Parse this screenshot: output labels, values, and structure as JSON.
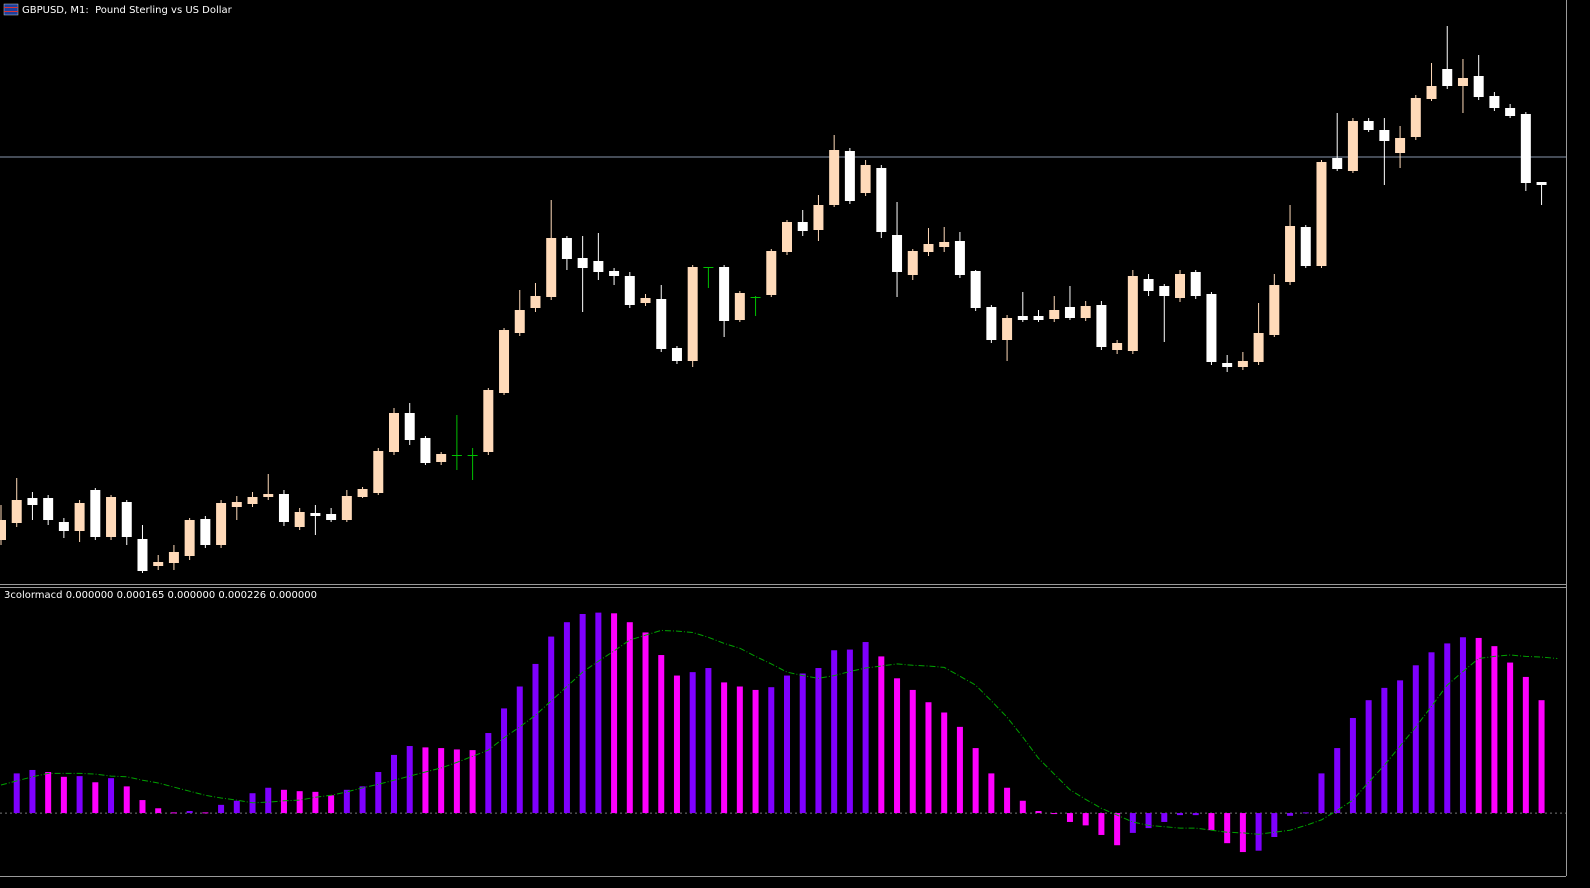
{
  "chart_data": [
    {
      "type": "candlestick",
      "title": "GBPUSD, M1:  Pound Sterling vs US Dollar",
      "open": [
        40,
        57,
        82,
        82,
        58,
        49,
        90,
        43,
        78,
        41,
        14,
        17,
        24,
        61,
        35,
        73,
        76,
        83,
        86,
        53,
        67,
        66,
        60,
        83,
        87,
        128,
        167,
        142,
        118,
        125,
        125,
        128,
        187,
        247,
        272,
        283,
        342,
        322,
        319,
        309,
        304,
        277,
        281,
        232,
        219,
        313,
        313,
        260,
        283,
        285,
        328,
        358,
        350,
        375,
        429,
        387,
        412,
        345,
        305,
        328,
        333,
        339,
        309,
        273,
        240,
        264,
        264,
        261,
        273,
        262,
        275,
        230,
        229,
        301,
        294,
        282,
        308,
        286,
        217,
        213,
        218,
        245,
        298,
        353,
        314,
        422,
        409,
        459,
        450,
        427,
        443,
        481,
        511,
        494,
        504,
        484,
        472,
        466,
        398
      ],
      "high": [
        75,
        102,
        88,
        85,
        62,
        80,
        92,
        85,
        80,
        55,
        25,
        35,
        62,
        64,
        80,
        84,
        88,
        106,
        90,
        72,
        75,
        72,
        90,
        93,
        132,
        172,
        177,
        144,
        128,
        165,
        132,
        192,
        252,
        290,
        297,
        380,
        344,
        344,
        347,
        312,
        308,
        286,
        295,
        234,
        315,
        313,
        315,
        289,
        284,
        331,
        360,
        370,
        385,
        445,
        432,
        420,
        415,
        378,
        331,
        352,
        353,
        348,
        310,
        275,
        265,
        288,
        270,
        284,
        294,
        279,
        279,
        240,
        310,
        306,
        296,
        310,
        310,
        288,
        225,
        228,
        277,
        306,
        375,
        355,
        420,
        467,
        462,
        462,
        462,
        454,
        485,
        517,
        554,
        521,
        525,
        488,
        476,
        468,
        398
      ],
      "low": [
        35,
        53,
        60,
        55,
        42,
        38,
        40,
        40,
        35,
        7,
        10,
        10,
        20,
        32,
        32,
        60,
        73,
        80,
        54,
        50,
        45,
        58,
        58,
        82,
        85,
        125,
        135,
        115,
        115,
        110,
        100,
        125,
        185,
        244,
        268,
        280,
        310,
        268,
        300,
        295,
        272,
        274,
        228,
        216,
        213,
        292,
        243,
        258,
        264,
        283,
        325,
        344,
        339,
        373,
        376,
        384,
        342,
        283,
        300,
        324,
        328,
        302,
        269,
        237,
        219,
        258,
        258,
        258,
        260,
        259,
        230,
        226,
        226,
        284,
        238,
        278,
        281,
        215,
        208,
        210,
        215,
        243,
        295,
        312,
        312,
        409,
        407,
        448,
        395,
        412,
        440,
        479,
        491,
        467,
        480,
        469,
        462,
        389,
        375
      ],
      "close": [
        60,
        80,
        75,
        60,
        49,
        77,
        43,
        83,
        43,
        9,
        18,
        28,
        60,
        35,
        77,
        78,
        83,
        86,
        58,
        68,
        64,
        60,
        84,
        91,
        129,
        167,
        140,
        117,
        126,
        125,
        125,
        190,
        250,
        270,
        284,
        342,
        321,
        312,
        308,
        304,
        275,
        282,
        231,
        219,
        313,
        313,
        259,
        287,
        283,
        329,
        358,
        349,
        375,
        430,
        379,
        415,
        348,
        308,
        329,
        336,
        338,
        305,
        272,
        240,
        262,
        260,
        260,
        270,
        262,
        274,
        233,
        237,
        304,
        289,
        284,
        306,
        284,
        218,
        213,
        219,
        247,
        295,
        354,
        314,
        418,
        411,
        459,
        450,
        439,
        442,
        482,
        494,
        494,
        502,
        483,
        472,
        464,
        397,
        395
      ],
      "up_color": "#ffdab9",
      "down_color": "#ffffff",
      "flat_color": "#00c000",
      "ylim": [
        -4,
        580
      ],
      "hline": 423,
      "hline_color": "#8796ad"
    },
    {
      "type": "histogram",
      "title": "3colormacd 0.000000 0.000165 0.000000 0.000226 0.000000",
      "values": [
        null,
        5.8e-05,
        6.3e-05,
        6e-05,
        5.3e-05,
        5.4e-05,
        4.5e-05,
        5.1e-05,
        3.9e-05,
        1.9e-05,
        7e-06,
        1e-06,
        3e-06,
        1e-06,
        1.2e-05,
        1.8e-05,
        2.9e-05,
        3.7e-05,
        3.4e-05,
        3.2e-05,
        3.1e-05,
        2.6e-05,
        3.4e-05,
        3.9e-05,
        6e-05,
        8.5e-05,
        9.8e-05,
        9.6e-05,
        9.5e-05,
        9.3e-05,
        9.2e-05,
        0.000117,
        0.000153,
        0.000185,
        0.000218,
        0.000258,
        0.000279,
        0.000291,
        0.000293,
        0.000292,
        0.000279,
        0.000264,
        0.000231,
        0.000201,
        0.000206,
        0.000212,
        0.000191,
        0.000185,
        0.00018,
        0.000184,
        0.000201,
        0.000204,
        0.000212,
        0.000238,
        0.000239,
        0.00025,
        0.000229,
        0.000197,
        0.00018,
        0.000162,
        0.000147,
        0.000126,
        9.5e-05,
        5.8e-05,
        3.7e-05,
        1.8e-05,
        3e-06,
        -1e-06,
        -1.3e-05,
        -1.8e-05,
        -3.2e-05,
        -4.7e-05,
        -2.9e-05,
        -2.2e-05,
        -1.3e-05,
        -3e-06,
        -3e-06,
        -2.5e-05,
        -4.4e-05,
        -5.7e-05,
        -5.5e-05,
        -3.5e-05,
        -4e-06,
        1e-06,
        5.8e-05,
        9.5e-05,
        0.000139,
        0.000165,
        0.000183,
        0.000194,
        0.000216,
        0.000235,
        0.000248,
        0.000257,
        0.000256,
        0.000244,
        0.00022,
        0.000199,
        0.000165
      ],
      "signal": [
        4.1e-05,
        4.7e-05,
        5.3e-05,
        5.8e-05,
        5.8e-05,
        5.8e-05,
        5.7e-05,
        5.4e-05,
        5.3e-05,
        4.8e-05,
        4.4e-05,
        3.8e-05,
        3.2e-05,
        2.6e-05,
        2.2e-05,
        1.9e-05,
        1.5e-05,
        1.6e-05,
        1.8e-05,
        1.9e-05,
        2.3e-05,
        2.6e-05,
        3.1e-05,
        3.7e-05,
        4.2e-05,
        4.8e-05,
        5.4e-05,
        6e-05,
        6.6e-05,
        7.4e-05,
        8.3e-05,
        9.2e-05,
        0.00011,
        0.000126,
        0.000143,
        0.000164,
        0.000185,
        0.000206,
        0.000222,
        0.000237,
        0.000253,
        0.00026,
        0.000267,
        0.000266,
        0.000264,
        0.000257,
        0.000248,
        0.000241,
        0.000229,
        0.000218,
        0.000206,
        0.000201,
        0.000197,
        0.000201,
        0.000207,
        0.000212,
        0.000215,
        0.000218,
        0.000216,
        0.000215,
        0.000213,
        0.0002,
        0.000187,
        0.000164,
        0.00014,
        0.000111,
        8e-05,
        5.7e-05,
        3.4e-05,
        2e-05,
        7e-06,
        -3e-06,
        -1.3e-05,
        -1.8e-05,
        -2e-05,
        -2.2e-05,
        -2.2e-05,
        -2.5e-05,
        -2.8e-05,
        -2.9e-05,
        -3.1e-05,
        -2.8e-05,
        -2.5e-05,
        -1.8e-05,
        -1e-05,
        4e-06,
        1.9e-05,
        4.5e-05,
        7e-05,
        9.8e-05,
        0.000126,
        0.000156,
        0.000187,
        0.000207,
        0.000226,
        0.000229,
        0.000231,
        0.000229,
        0.000228,
        0.000226
      ],
      "up_color": "#7f00ff",
      "down_color": "#ff00ff",
      "signal_color": "#00a000",
      "ylim": [
        -9.2e-05,
        0.000329
      ]
    }
  ]
}
